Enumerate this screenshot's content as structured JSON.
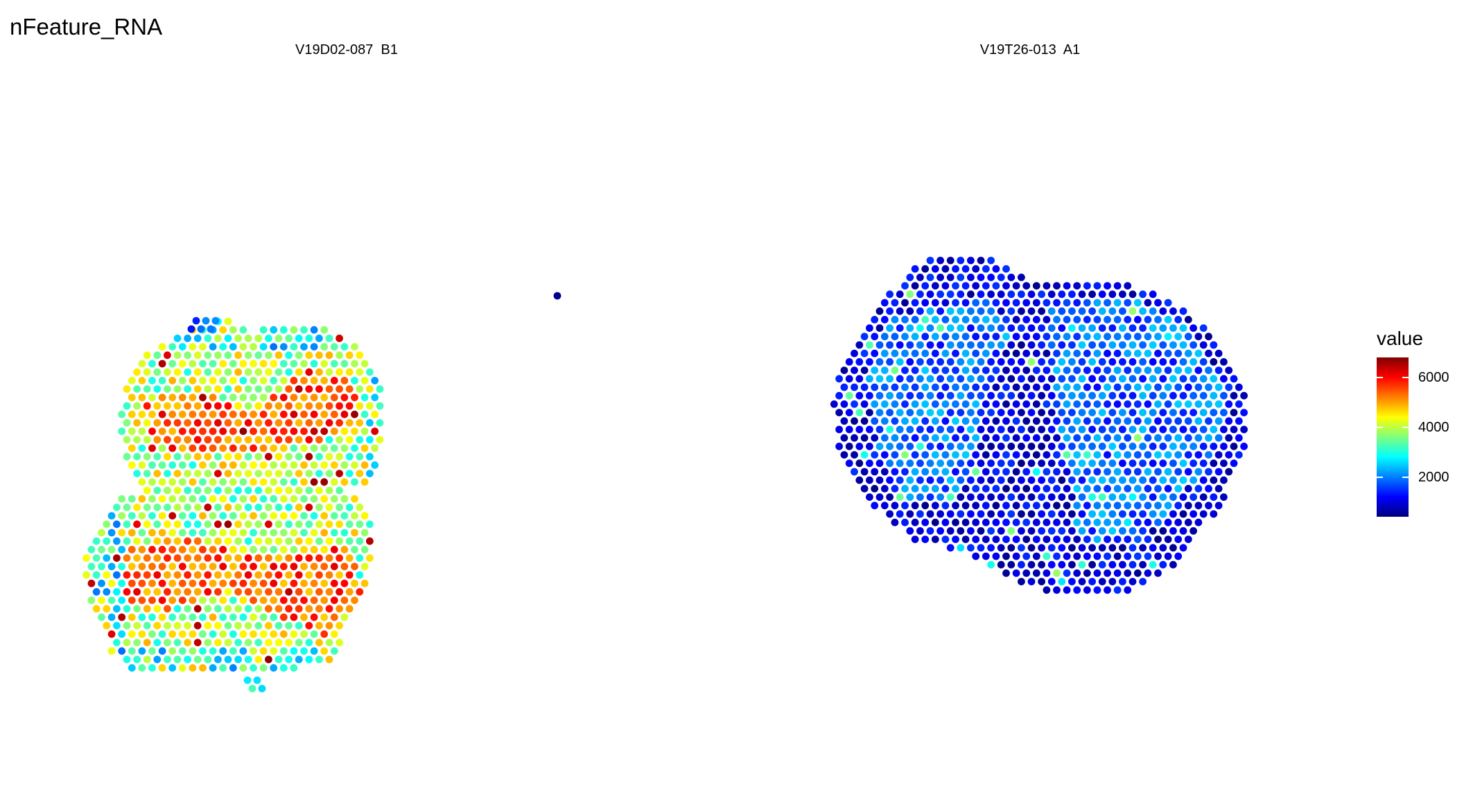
{
  "chart_data": {
    "type": "scatter",
    "title": "nFeature_RNA",
    "panels": [
      {
        "name": "V19D02-087  B1",
        "section": "tissue spots colored by nFeature_RNA, mostly high values (approx. 3000–6500)"
      },
      {
        "name": "V19T26-013  A1",
        "section": "tissue spots colored by nFeature_RNA, mostly low values (approx. 500–2500)"
      }
    ],
    "stray_spot": {
      "panel": "V19D02-087  B1",
      "value": 500
    },
    "legend": {
      "title": "value",
      "ticks": [
        "2000",
        "4000",
        "6000"
      ],
      "tick_values": [
        2000,
        4000,
        6000
      ],
      "range": [
        400,
        6800
      ],
      "colors": [
        "#00007F",
        "#0000FF",
        "#007FFF",
        "#00FFFF",
        "#7FFF7F",
        "#FFFF00",
        "#FF7F00",
        "#FF0000",
        "#7F0000"
      ],
      "placement": "right"
    },
    "grid": false,
    "axes": "none"
  }
}
